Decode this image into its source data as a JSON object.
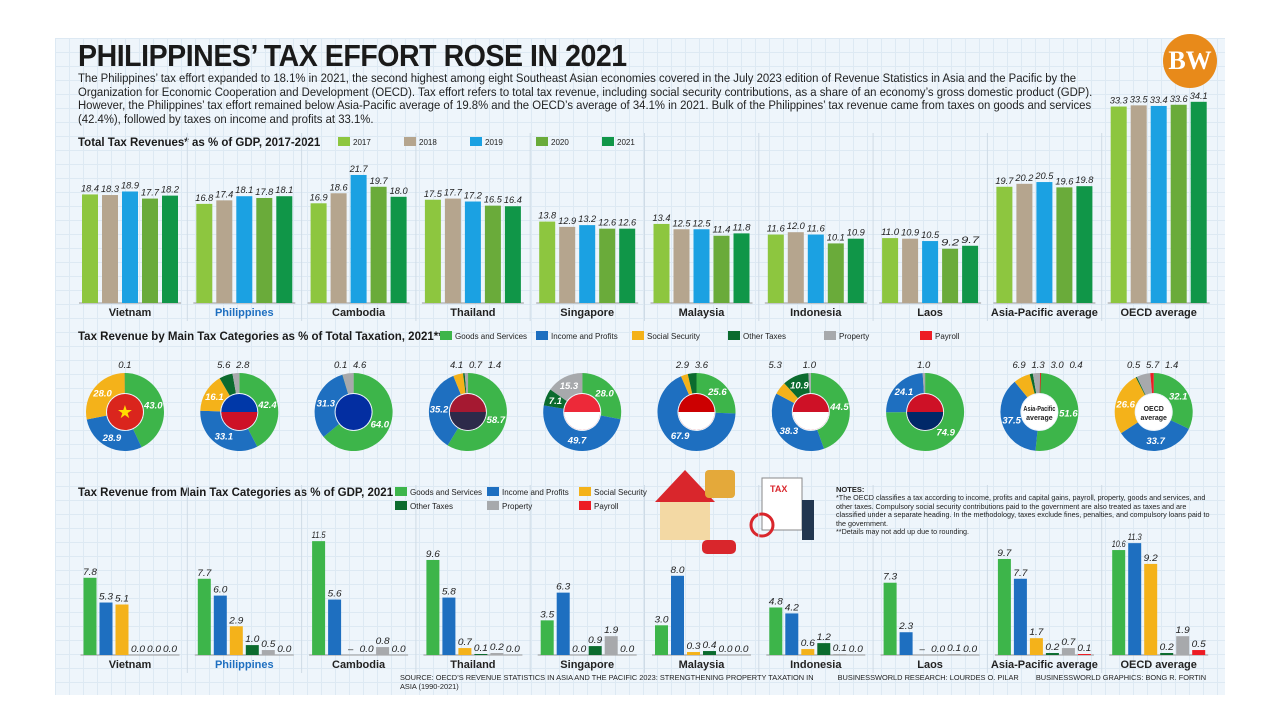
{
  "header": {
    "title": "PHILIPPINES’ TAX EFFORT ROSE IN 2021",
    "logo": "BW",
    "intro": "The Philippines’ tax effort expanded to 18.1% in 2021, the second highest among eight Southeast Asian economies covered in the July 2023 edition of Revenue Statistics in Asia and the Pacific by the Organization for Economic Cooperation and Development (OECD). Tax effort refers to total tax revenue, including social security contributions, as a share of an economy’s gross domestic product (GDP). However, the Philippines’ tax effort remained below Asia-Pacific average of 19.8% and the OECD’s average of 34.1% in 2021. Bulk of the Philippines’ tax revenue came from taxes on goods and services (42.4%), followed by taxes on income and profits at 33.1%."
  },
  "colors": {
    "highlight": "#1e6fc0",
    "logo": "#e88a1a"
  },
  "chart_data": [
    {
      "type": "bar",
      "title": "Total Tax Revenues* as % of GDP, 2017-2021",
      "categories": [
        "Vietnam",
        "Philippines",
        "Cambodia",
        "Thailand",
        "Singapore",
        "Malaysia",
        "Indonesia",
        "Laos",
        "Asia-Pacific average",
        "OECD average"
      ],
      "highlight_category": "Philippines",
      "legend": "top",
      "ylim": [
        0,
        35
      ],
      "series": [
        {
          "name": "2017",
          "color": "#8dc63f",
          "values": [
            18.4,
            16.8,
            16.9,
            17.5,
            13.8,
            13.4,
            11.6,
            11.0,
            19.7,
            33.3
          ]
        },
        {
          "name": "2018",
          "color": "#b5a58e",
          "values": [
            18.3,
            17.4,
            18.6,
            17.7,
            12.9,
            12.5,
            12.0,
            10.9,
            20.2,
            33.5
          ]
        },
        {
          "name": "2019",
          "color": "#1ba1e2",
          "values": [
            18.9,
            18.1,
            21.7,
            17.2,
            13.2,
            12.5,
            11.6,
            10.5,
            20.5,
            33.4
          ]
        },
        {
          "name": "2020",
          "color": "#6aab3a",
          "values": [
            17.7,
            17.8,
            19.7,
            16.5,
            12.6,
            11.4,
            10.1,
            9.2,
            19.6,
            33.6
          ]
        },
        {
          "name": "2021",
          "color": "#109648",
          "values": [
            18.2,
            18.1,
            18.0,
            16.4,
            12.6,
            11.8,
            10.9,
            9.7,
            19.8,
            34.1
          ]
        }
      ]
    },
    {
      "type": "pie",
      "title": "Tax Revenue by Main Tax Categories as % of Total Taxation, 2021**",
      "categories": [
        "Vietnam",
        "Philippines",
        "Cambodia",
        "Thailand",
        "Singapore",
        "Malaysia",
        "Indonesia",
        "Laos",
        "Asia-Pacific average",
        "OECD average"
      ],
      "center_labels": [
        "",
        "",
        "",
        "",
        "",
        "",
        "",
        "",
        "Asia-Pacific average",
        "OECD average"
      ],
      "legend": "top",
      "series": [
        {
          "name": "Goods and Services",
          "color": "#3db54a",
          "values": [
            43.0,
            42.4,
            64.0,
            58.7,
            28.0,
            25.6,
            44.5,
            74.9,
            51.6,
            32.1
          ]
        },
        {
          "name": "Income and Profits",
          "color": "#1e6fc0",
          "values": [
            28.9,
            33.1,
            31.3,
            35.2,
            49.7,
            67.9,
            38.3,
            24.1,
            37.5,
            33.7
          ]
        },
        {
          "name": "Social Security",
          "color": "#f4b21a",
          "values": [
            28.0,
            16.1,
            null,
            4.1,
            null,
            2.9,
            5.3,
            null,
            6.9,
            26.6
          ]
        },
        {
          "name": "Other Taxes",
          "color": "#0b6b2e",
          "values": [
            0.1,
            5.6,
            0.1,
            0.7,
            7.1,
            3.6,
            10.9,
            null,
            1.3,
            0.5
          ]
        },
        {
          "name": "Property",
          "color": "#a7a9ac",
          "values": [
            null,
            2.8,
            4.6,
            1.4,
            15.3,
            null,
            1.0,
            1.0,
            3.0,
            5.7
          ]
        },
        {
          "name": "Payroll",
          "color": "#ed1c24",
          "values": [
            null,
            null,
            null,
            null,
            null,
            null,
            null,
            null,
            0.4,
            1.4
          ]
        }
      ]
    },
    {
      "type": "bar",
      "title": "Tax Revenue from Main Tax Categories as % of GDP, 2021",
      "categories": [
        "Vietnam",
        "Philippines",
        "Cambodia",
        "Thailand",
        "Singapore",
        "Malaysia",
        "Indonesia",
        "Laos",
        "Asia-Pacific average",
        "OECD average"
      ],
      "highlight_category": "Philippines",
      "legend": "top",
      "ylim": [
        0,
        12
      ],
      "missing_label": "–",
      "series": [
        {
          "name": "Goods and Services",
          "color": "#3db54a",
          "values": [
            7.8,
            7.7,
            11.5,
            9.6,
            3.5,
            3.0,
            4.8,
            7.3,
            9.7,
            10.6
          ]
        },
        {
          "name": "Income and Profits",
          "color": "#1e6fc0",
          "values": [
            5.3,
            6.0,
            5.6,
            5.8,
            6.3,
            8.0,
            4.2,
            2.3,
            7.7,
            11.3
          ]
        },
        {
          "name": "Social Security",
          "color": "#f4b21a",
          "values": [
            5.1,
            2.9,
            null,
            0.7,
            0.0,
            0.3,
            0.6,
            null,
            1.7,
            9.2
          ]
        },
        {
          "name": "Other Taxes",
          "color": "#0b6b2e",
          "values": [
            0.0,
            1.0,
            0.0,
            0.1,
            0.9,
            0.4,
            1.2,
            0.0,
            0.2,
            0.2
          ]
        },
        {
          "name": "Property",
          "color": "#a7a9ac",
          "values": [
            0.0,
            0.5,
            0.8,
            0.2,
            1.9,
            0.0,
            0.1,
            0.1,
            0.7,
            1.9
          ]
        },
        {
          "name": "Payroll",
          "color": "#ed1c24",
          "values": [
            0.0,
            0.0,
            0.0,
            0.0,
            0.0,
            0.0,
            0.0,
            0.0,
            0.1,
            0.5
          ]
        }
      ]
    }
  ],
  "notes": {
    "heading": "NOTES:",
    "note1": "*The OECD classifies a tax according to income, profits and capital gains, payroll, property, goods and services, and other taxes. Compulsory social security contributions paid to the government are also treated as taxes and are classified under a separate heading. In the methodology, taxes exclude fines, penalties, and compulsory loans paid to the government.",
    "note2": "**Details may not add up due to rounding."
  },
  "credits": {
    "source": "SOURCE: OECD’S REVENUE STATISTICS IN ASIA AND THE PACIFIC 2023: STRENGTHENING PROPERTY TAXATION IN ASIA (1990-2021)",
    "research": "BUSINESSWORLD RESEARCH: LOURDES O. PILAR",
    "graphics": "BUSINESSWORLD GRAPHICS: BONG R. FORTIN"
  }
}
